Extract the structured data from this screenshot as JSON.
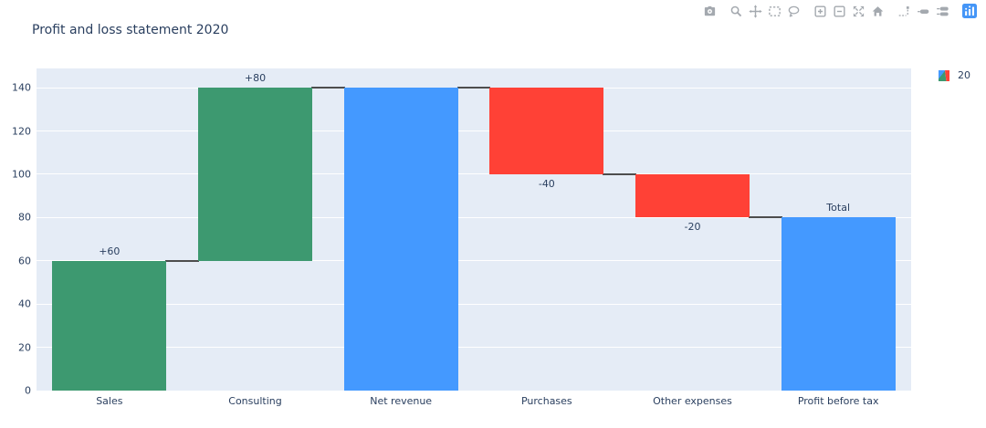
{
  "modebar": {
    "groups": [
      [
        "camera-icon"
      ],
      [
        "zoom-icon",
        "pan-icon",
        "box-select-icon",
        "lasso-select-icon"
      ],
      [
        "zoom-in-icon",
        "zoom-out-icon",
        "autoscale-icon",
        "reset-axes-icon"
      ],
      [
        "spikelines-icon",
        "hover-closest-icon",
        "hover-compare-icon"
      ],
      [
        "plotly-logo-icon"
      ]
    ]
  },
  "chart_data": {
    "type": "waterfall",
    "title": "Profit and loss statement 2020",
    "categories": [
      "Sales",
      "Consulting",
      "Net revenue",
      "Purchases",
      "Other expenses",
      "Profit before tax"
    ],
    "measures": [
      "relative",
      "relative",
      "total",
      "relative",
      "relative",
      "total"
    ],
    "values": [
      60,
      80,
      140,
      -40,
      -20,
      80
    ],
    "bar_labels": [
      "+60",
      "+80",
      "",
      "-40",
      "-20",
      "Total"
    ],
    "yticks": [
      0,
      20,
      40,
      60,
      80,
      100,
      120,
      140
    ],
    "ylim": [
      0,
      148.9
    ],
    "xlabel": "",
    "ylabel": "",
    "grid": true,
    "legend_position": "right",
    "legend_label": "20",
    "colors": {
      "increasing": "#3D9970",
      "decreasing": "#FF4136",
      "totals": "#4499FF",
      "connector": "#4D4D4D",
      "plot_bg": "#E5ECF6",
      "gridline": "#FFFFFF",
      "text": "#2A3F5F",
      "modebar_icon": "#A4A9AF",
      "logo_blue": "#4596F7"
    }
  }
}
